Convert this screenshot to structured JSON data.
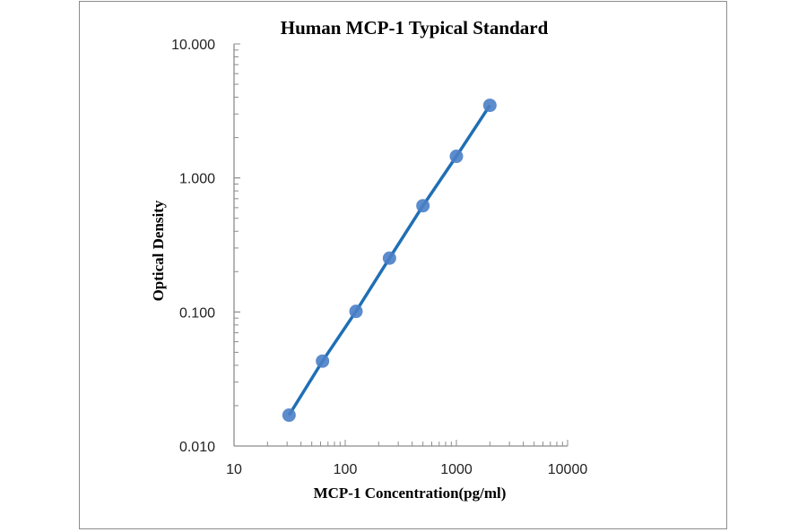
{
  "chart_data": {
    "type": "line",
    "title": "Human MCP-1 Typical Standard",
    "xlabel": "MCP-1 Concentration(pg/ml)",
    "ylabel": "Optical Density",
    "x_scale": "log",
    "y_scale": "log",
    "xlim": [
      10,
      10000
    ],
    "ylim": [
      0.01,
      10
    ],
    "x_tick_labels": [
      "10",
      "100",
      "1000",
      "10000"
    ],
    "y_tick_labels": [
      "0.010",
      "0.100",
      "1.000",
      "10.000"
    ],
    "grid": false,
    "legend": "none",
    "series": [
      {
        "x": [
          31.25,
          62.5,
          125,
          250,
          500,
          1000,
          2000
        ],
        "y": [
          0.017,
          0.043,
          0.101,
          0.252,
          0.62,
          1.45,
          3.48
        ],
        "color": "#1f6fb5",
        "marker_color": "#4a7fc6"
      }
    ]
  }
}
